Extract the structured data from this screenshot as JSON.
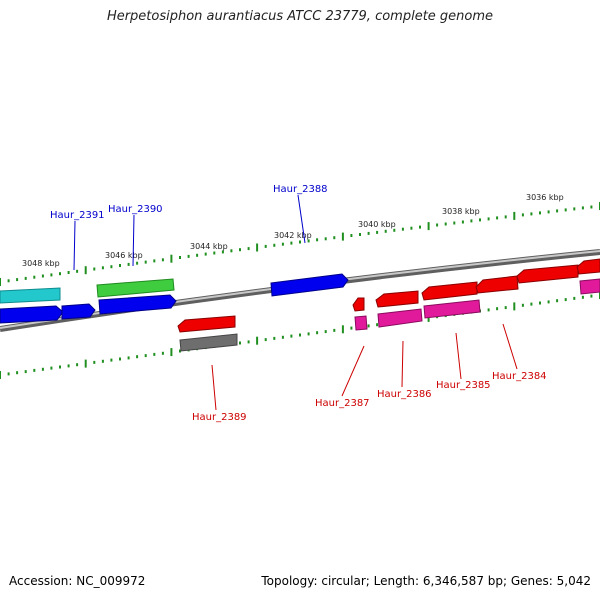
{
  "title": "Herpetosiphon aurantiacus ATCC 23779, complete genome",
  "accession": "Accession: NC_009972",
  "summary": "Topology: circular; Length: 6,346,587 bp; Genes: 5,042",
  "tick_labels": [
    {
      "text": "3048 kbp"
    },
    {
      "text": "3046 kbp"
    },
    {
      "text": "3044 kbp"
    },
    {
      "text": "3042 kbp"
    },
    {
      "text": "3040 kbp"
    },
    {
      "text": "3038 kbp"
    },
    {
      "text": "3036 kbp"
    }
  ],
  "gene_labels_forward": [
    {
      "text": "Haur_2391"
    },
    {
      "text": "Haur_2390"
    },
    {
      "text": "Haur_2388"
    }
  ],
  "gene_labels_reverse": [
    {
      "text": "Haur_2389"
    },
    {
      "text": "Haur_2387"
    },
    {
      "text": "Haur_2386"
    },
    {
      "text": "Haur_2385"
    },
    {
      "text": "Haur_2384"
    }
  ],
  "colors": {
    "backbone": "#808080",
    "tick": "#1f8f1f",
    "forward_label": "#0000cc",
    "reverse_label": "#cc0000",
    "cyan": "#22c8cc",
    "blue": "#0000ee",
    "green": "#3fcc3f",
    "red": "#ee0000",
    "magenta": "#e01a9a",
    "gray": "#6e6e6e"
  }
}
